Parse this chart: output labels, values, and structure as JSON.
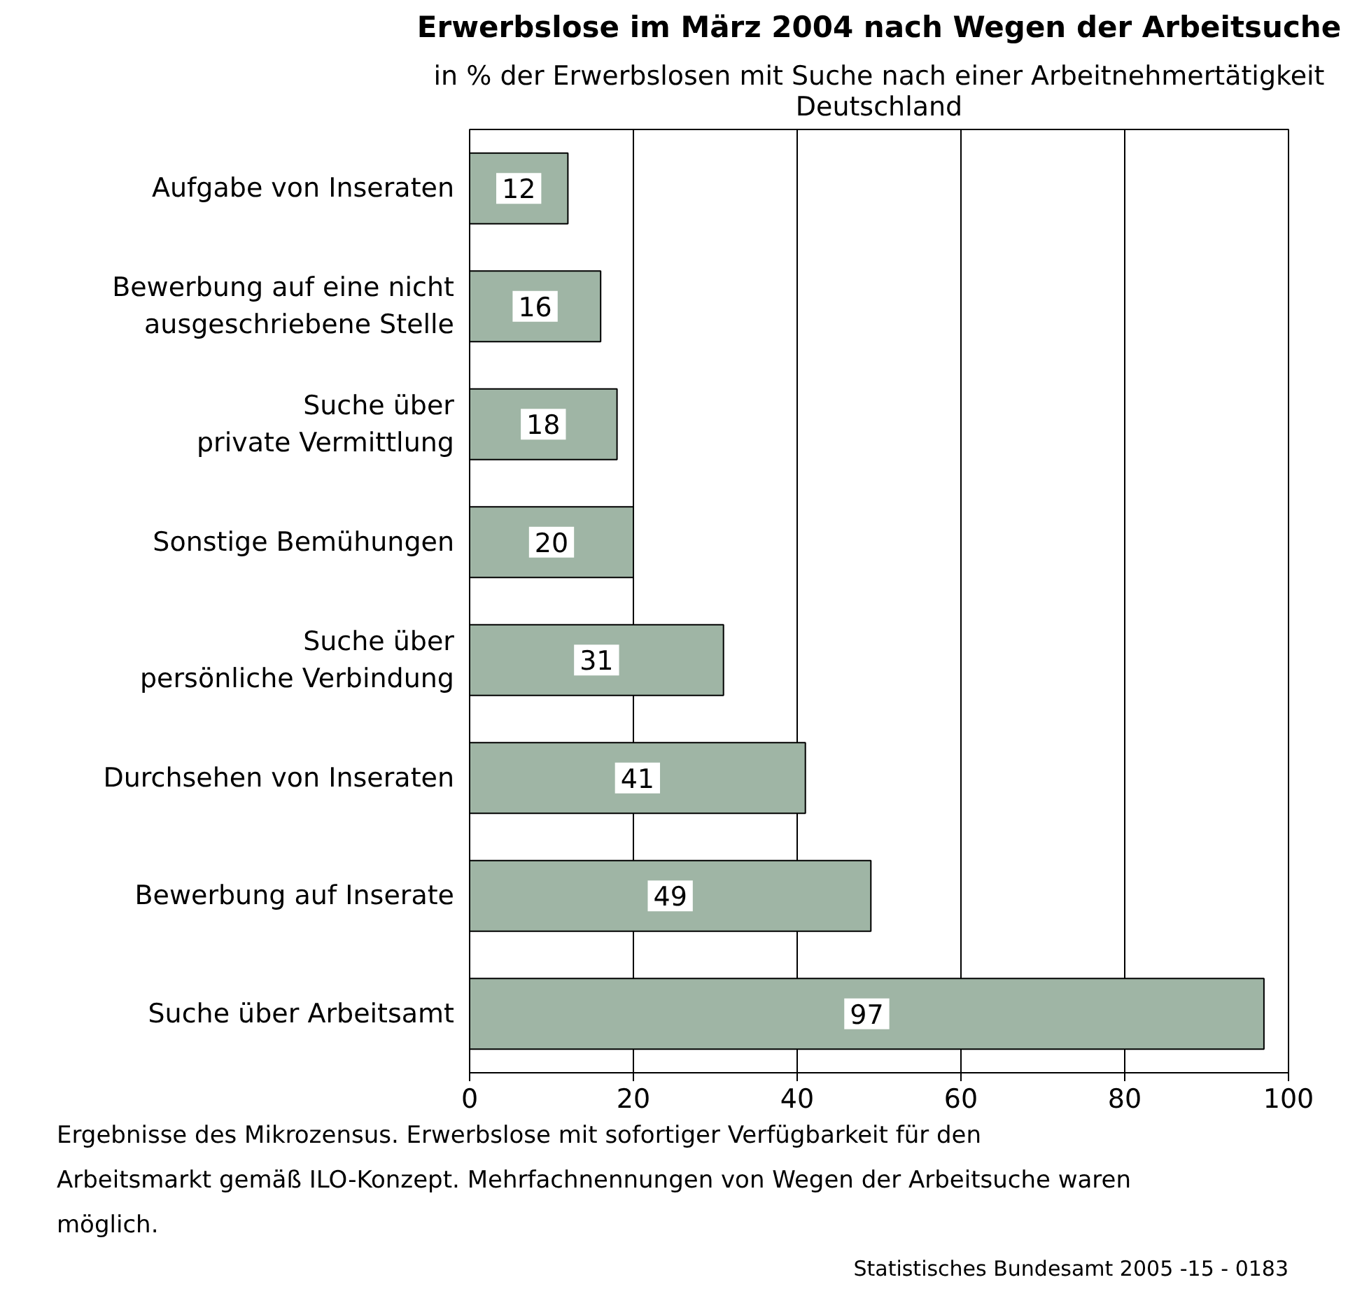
{
  "chart_data": {
    "type": "bar",
    "orientation": "horizontal",
    "title": "Erwerbslose im März 2004 nach Wegen der Arbeitsuche",
    "subtitle": "in % der Erwerbslosen mit Suche nach einer Arbeitnehmertätigkeit\nDeutschland",
    "categories": [
      "Aufgabe von Inseraten",
      "Bewerbung auf eine nicht\nausgeschriebene Stelle",
      "Suche über\nprivate Vermittlung",
      "Sonstige Bemühungen",
      "Suche über\npersönliche Verbindung",
      "Durchsehen von Inseraten",
      "Bewerbung auf Inserate",
      "Suche über Arbeitsamt"
    ],
    "values": [
      12,
      16,
      18,
      20,
      31,
      41,
      49,
      97
    ],
    "color": "#9fb5a5",
    "xlim": [
      0,
      100
    ],
    "xticks": [
      0,
      20,
      40,
      60,
      80,
      100
    ],
    "grid": "x",
    "data_labels": true,
    "annotations": [
      "Ergebnisse des Mikrozensus. Erwerbslose mit sofortiger Verfügbarkeit für den Arbeitsmarkt gemäß ILO-Konzept. Mehrfachnennungen von Wegen der Arbeitsuche waren möglich.",
      "Statistisches Bundesamt 2005 -15 - 0183"
    ]
  }
}
